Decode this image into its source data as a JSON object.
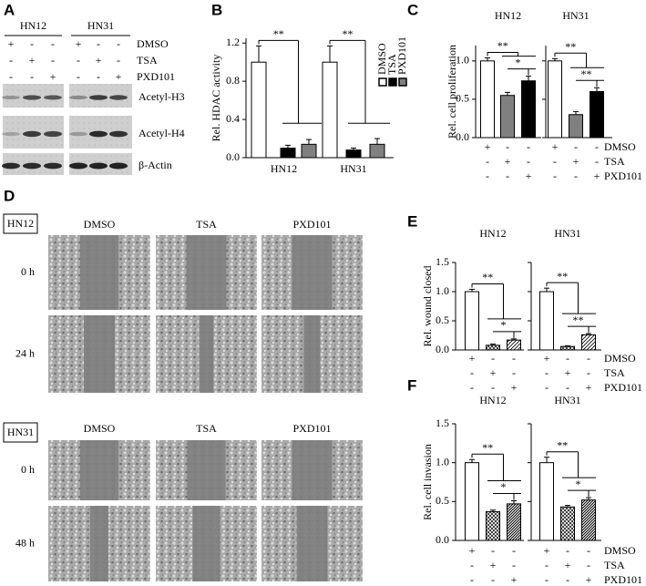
{
  "panel_labels": [
    "A",
    "B",
    "C",
    "D",
    "E",
    "F"
  ],
  "blot": {
    "cell_lines": [
      "HN12",
      "HN31"
    ],
    "treatments": [
      "DMSO",
      "TSA",
      "PXD101"
    ],
    "on": "+",
    "off": "-",
    "bands": [
      "Acetyl-H3",
      "Acetyl-H4",
      "β-Actin"
    ]
  },
  "wound": {
    "cell_lines": [
      "HN12",
      "HN31"
    ],
    "treatments": [
      "DMSO",
      "TSA",
      "PXD101"
    ],
    "times": [
      [
        "0 h",
        "24 h"
      ],
      [
        "0 h",
        "48 h"
      ]
    ]
  },
  "chart_data": [
    {
      "type": "bar",
      "ylabel": "Rel. HDAC activity",
      "groups": [
        "HN12",
        "HN31"
      ],
      "ylim": [
        0,
        1.25
      ],
      "yticks": [
        {
          "value": 0,
          "label": "0.0"
        },
        0.4,
        0.8,
        1.2
      ],
      "legend": true,
      "series": [
        {
          "name": "DMSO",
          "color": "#ffffff",
          "values": [
            1.0,
            1.0
          ],
          "errors": [
            0.17,
            0.17
          ]
        },
        {
          "name": "TSA",
          "color": "#000000",
          "values": [
            0.1,
            0.08
          ],
          "errors": [
            0.03,
            0.02
          ]
        },
        {
          "name": "PXD101",
          "color": "#808080",
          "values": [
            0.14,
            0.14
          ],
          "errors": [
            0.05,
            0.06
          ]
        }
      ],
      "annotations": [
        [
          "**"
        ],
        [
          "**"
        ]
      ]
    },
    {
      "type": "bar",
      "ylabel": "Rel. cell proliferation",
      "groups": [
        "HN12",
        "HN31"
      ],
      "ylim": [
        0,
        1.2
      ],
      "yticks": [
        {
          "value": 0,
          "label": "0.0"
        },
        0.5,
        {
          "value": 1,
          "label": "1.0"
        }
      ],
      "signs": {
        "on": "+",
        "off": "-"
      },
      "series": [
        {
          "name": "DMSO",
          "color": "#ffffff",
          "values": [
            1.0,
            1.0
          ],
          "errors": [
            0.04,
            0.03
          ]
        },
        {
          "name": "TSA",
          "color": "#808080",
          "values": [
            0.55,
            0.3
          ],
          "errors": [
            0.04,
            0.04
          ]
        },
        {
          "name": "PXD101",
          "color": "#000000",
          "values": [
            0.74,
            0.6
          ],
          "errors": [
            0.06,
            0.05
          ]
        }
      ],
      "annotations": [
        [
          "**",
          "*"
        ],
        [
          "**",
          "**"
        ]
      ]
    },
    {
      "type": "bar",
      "ylabel": "Rel. wound closed",
      "groups": [
        "HN12",
        "HN31"
      ],
      "ylim": [
        0,
        1.5
      ],
      "yticks": [
        {
          "value": 0,
          "label": "0.0"
        },
        0.5,
        {
          "value": 1,
          "label": "1.0"
        },
        1.5
      ],
      "signs": {
        "on": "+",
        "off": "-"
      },
      "series": [
        {
          "name": "DMSO",
          "color": "#ffffff",
          "values": [
            1.0,
            1.0
          ],
          "errors": [
            0.04,
            0.06
          ]
        },
        {
          "name": "TSA",
          "color": "#000000",
          "pattern": "crosshatch",
          "values": [
            0.08,
            0.06
          ],
          "errors": [
            0.02,
            0.01
          ]
        },
        {
          "name": "PXD101",
          "color": "#000000",
          "pattern": "hatch",
          "values": [
            0.17,
            0.26
          ],
          "errors": [
            0.02,
            0.02
          ]
        }
      ],
      "annotations": [
        [
          "**",
          "*"
        ],
        [
          "**",
          "**"
        ]
      ]
    },
    {
      "type": "bar",
      "ylabel": "Rel. cell invasion",
      "groups": [
        "HN12",
        "HN31"
      ],
      "ylim": [
        0,
        1.5
      ],
      "yticks": [
        {
          "value": 0,
          "label": "0.0"
        },
        0.5,
        {
          "value": 1,
          "label": "1.0"
        },
        1.5
      ],
      "signs": {
        "on": "+",
        "off": "-"
      },
      "series": [
        {
          "name": "DMSO",
          "color": "#ffffff",
          "values": [
            1.0,
            1.0
          ],
          "errors": [
            0.04,
            0.07
          ]
        },
        {
          "name": "TSA",
          "color": "#000000",
          "pattern": "crosshatch",
          "values": [
            0.37,
            0.43
          ],
          "errors": [
            0.02,
            0.02
          ]
        },
        {
          "name": "PXD101",
          "color": "#000000",
          "pattern": "hatch-dense",
          "values": [
            0.47,
            0.52
          ],
          "errors": [
            0.04,
            0.03
          ]
        }
      ],
      "annotations": [
        [
          "**",
          "*"
        ],
        [
          "**",
          "*"
        ]
      ]
    }
  ]
}
